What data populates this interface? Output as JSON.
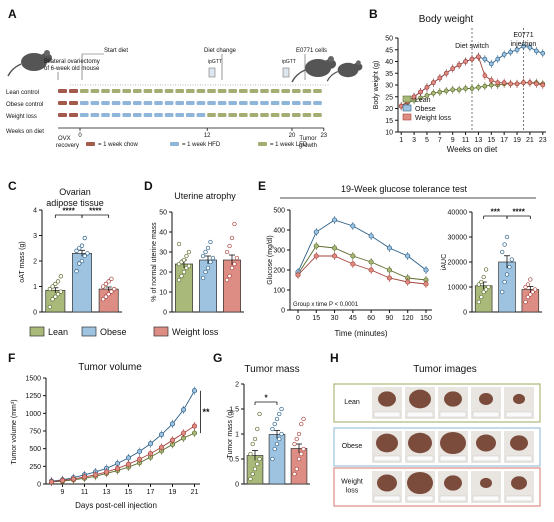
{
  "panels": {
    "A": {
      "letter": "A",
      "annot_ovx": "Bilateral ovariectomy",
      "annot_ovx2": "of 6-week old mouse",
      "annot_start": "Start diet",
      "annot_change": "Diet change",
      "annot_e0771": "E0771 cells",
      "annot_ipgtt1": "ipGTT",
      "annot_ipgtt2": "ipGTT",
      "rows": [
        "Lean control",
        "Obese control",
        "Weight loss",
        "Weeks on diet"
      ],
      "ticks": [
        "0",
        "12",
        "20",
        "23"
      ],
      "ovx": "OVX",
      "recovery": "recovery",
      "tumor": "Tumor",
      "growth": "growth",
      "legend": [
        "= 1 week chow",
        "= 1 week HFD",
        "= 1 week LFD"
      ],
      "colors": {
        "chow": "#a45a4a",
        "hfd": "#8fb6d8",
        "lfd": "#a6ad73"
      }
    },
    "B": {
      "letter": "B",
      "title": "Body weight",
      "ylabel": "Body weight (g)",
      "xlabel": "Weeks on diet",
      "diet_switch": "Diet switch",
      "e0771": "E0771",
      "injection": "injection"
    },
    "C": {
      "letter": "C",
      "title1": "Ovarian",
      "title2": "adipose tissue",
      "ylabel": "oAT mass (g)",
      "sig1": "****",
      "sig2": "****"
    },
    "D": {
      "letter": "D",
      "title": "Uterine atrophy",
      "ylabel": "% of normal uterine mass"
    },
    "E": {
      "letter": "E",
      "title": "19-Week glucose tolerance test",
      "ylabel": "Glucose (mg/dl)",
      "xlabel": "Time (minutes)",
      "stat": "Group x time P < 0.0001",
      "ylabel2": "iAUC",
      "sig1": "***",
      "sig2": "****"
    },
    "F": {
      "letter": "F",
      "title": "Tumor volume",
      "ylabel": "Tumor volume (mm³)",
      "xlabel": "Days post-cell injection",
      "sig": "**"
    },
    "G": {
      "letter": "G",
      "title": "Tumor mass",
      "ylabel": "Tumor mass (g)",
      "sig": "*"
    },
    "H": {
      "letter": "H",
      "title": "Tumor images",
      "rows": [
        "Lean",
        "Obese",
        "Weight\nloss"
      ],
      "tag": "lamp"
    }
  },
  "groups_legend": [
    "Lean",
    "Obese",
    "Weight loss"
  ],
  "colors": {
    "lean": "#a9b97a",
    "obese": "#9ec3e0",
    "wl": "#dd8d84",
    "lean_dark": "#5b6b2c",
    "obese_dark": "#2a5f88",
    "wl_dark": "#a8423b",
    "mid": "#7b4c3c"
  },
  "chart_data": [
    {
      "id": "B",
      "type": "line",
      "title": "Body weight",
      "xlabel": "Weeks on diet",
      "ylabel": "Body weight (g)",
      "x": [
        1,
        2,
        3,
        4,
        5,
        6,
        7,
        8,
        9,
        10,
        11,
        12,
        13,
        14,
        15,
        16,
        17,
        18,
        19,
        20,
        21,
        22,
        23
      ],
      "xticks": [
        1,
        3,
        5,
        7,
        9,
        11,
        13,
        15,
        17,
        19,
        21,
        23
      ],
      "ylim": [
        10,
        50
      ],
      "yticks": [
        10,
        15,
        20,
        25,
        30,
        35,
        40,
        45,
        50
      ],
      "vlines": [
        12,
        20
      ],
      "series": [
        {
          "name": "Lean",
          "values": [
            21,
            22.5,
            23.5,
            24.5,
            25.5,
            26.5,
            27,
            27.5,
            28,
            28,
            28.5,
            28.5,
            29,
            29.5,
            30,
            30,
            30.5,
            30.5,
            30.5,
            31,
            31,
            31,
            30.5
          ]
        },
        {
          "name": "Obese",
          "values": [
            21,
            23,
            25,
            27,
            29,
            31,
            33,
            35,
            37,
            38.5,
            40,
            41,
            42,
            41,
            39,
            41,
            43,
            44,
            45,
            46.5,
            46,
            44.5,
            43.5
          ]
        },
        {
          "name": "Weight loss",
          "values": [
            21,
            23,
            25,
            27,
            29,
            31,
            33,
            35,
            37,
            38.5,
            40,
            41,
            42,
            34,
            32,
            31,
            31,
            30.5,
            30.5,
            31,
            31,
            30.5,
            30
          ]
        }
      ]
    },
    {
      "id": "C",
      "type": "bar",
      "title": "Ovarian adipose tissue",
      "ylabel": "oAT mass (g)",
      "ylim": [
        0,
        4
      ],
      "yticks": [
        0,
        1,
        2,
        3,
        4
      ],
      "categories": [
        "Lean",
        "Obese",
        "Weight loss"
      ],
      "values": [
        0.85,
        2.3,
        0.9
      ],
      "errors": [
        0.1,
        0.12,
        0.08
      ],
      "points": [
        [
          0.2,
          0.5,
          0.6,
          0.7,
          0.8,
          0.9,
          1.0,
          1.1,
          1.2,
          1.4
        ],
        [
          1.6,
          1.9,
          2.0,
          2.2,
          2.3,
          2.4,
          2.5,
          2.6,
          2.9
        ],
        [
          0.5,
          0.6,
          0.7,
          0.8,
          0.9,
          1.0,
          1.1,
          1.2,
          1.3
        ]
      ]
    },
    {
      "id": "D",
      "type": "bar",
      "title": "Uterine atrophy",
      "ylabel": "% of normal uterine mass",
      "ylim": [
        0,
        50
      ],
      "yticks": [
        0,
        10,
        20,
        30,
        40,
        50
      ],
      "categories": [
        "Lean",
        "Obese",
        "Weight loss"
      ],
      "values": [
        24,
        26,
        26
      ],
      "errors": [
        2,
        2,
        2.5
      ],
      "points": [
        [
          16,
          18,
          20,
          22,
          23,
          24,
          25,
          26,
          28,
          30,
          34
        ],
        [
          17,
          20,
          22,
          25,
          27,
          28,
          30,
          32,
          35
        ],
        [
          16,
          18,
          22,
          24,
          27,
          30,
          33,
          37,
          44
        ]
      ]
    },
    {
      "id": "E1",
      "type": "line",
      "title": "19-Week glucose tolerance test",
      "xlabel": "Time (minutes)",
      "ylabel": "Glucose (mg/dl)",
      "x": [
        0,
        15,
        30,
        45,
        60,
        90,
        120,
        150
      ],
      "ylim": [
        0,
        500
      ],
      "yticks": [
        0,
        100,
        200,
        300,
        400,
        500
      ],
      "series": [
        {
          "name": "Lean",
          "values": [
            180,
            320,
            310,
            270,
            240,
            200,
            160,
            150
          ]
        },
        {
          "name": "Obese",
          "values": [
            190,
            390,
            450,
            420,
            370,
            310,
            270,
            200
          ]
        },
        {
          "name": "Weight loss",
          "values": [
            175,
            270,
            270,
            230,
            200,
            160,
            140,
            130
          ]
        }
      ]
    },
    {
      "id": "E2",
      "type": "bar",
      "ylabel": "iAUC",
      "ylim": [
        0,
        40000
      ],
      "yticks": [
        0,
        10000,
        20000,
        30000,
        40000
      ],
      "categories": [
        "Lean",
        "Obese",
        "Weight loss"
      ],
      "values": [
        10500,
        20000,
        9000
      ],
      "errors": [
        1500,
        2500,
        1200
      ],
      "points": [
        [
          4000,
          6000,
          8000,
          9000,
          10000,
          11000,
          12000,
          14000,
          17000
        ],
        [
          8000,
          12000,
          15000,
          18000,
          21000,
          24000,
          27000,
          30000
        ],
        [
          4000,
          6000,
          7000,
          8000,
          9000,
          10000,
          11000,
          13000
        ]
      ]
    },
    {
      "id": "F",
      "type": "line",
      "title": "Tumor volume",
      "xlabel": "Days post-cell injection",
      "ylabel": "Tumor volume (mm³)",
      "x": [
        8,
        9,
        10,
        11,
        12,
        13,
        14,
        15,
        16,
        17,
        18,
        19,
        20,
        21
      ],
      "xticks": [
        9,
        11,
        13,
        15,
        17,
        19,
        21
      ],
      "ylim": [
        0,
        1500
      ],
      "yticks": [
        0,
        250,
        500,
        750,
        1000,
        1250,
        1500
      ],
      "series": [
        {
          "name": "Lean",
          "values": [
            30,
            40,
            60,
            80,
            110,
            150,
            190,
            240,
            300,
            380,
            470,
            560,
            650,
            720
          ]
        },
        {
          "name": "Obese",
          "values": [
            40,
            60,
            90,
            130,
            170,
            220,
            290,
            370,
            460,
            570,
            700,
            850,
            1050,
            1320
          ]
        },
        {
          "name": "Weight loss",
          "values": [
            30,
            50,
            70,
            100,
            130,
            170,
            220,
            280,
            350,
            430,
            520,
            620,
            720,
            820
          ]
        }
      ]
    },
    {
      "id": "G",
      "type": "bar",
      "title": "Tumor mass",
      "ylabel": "Tumor mass (g)",
      "ylim": [
        0,
        2.0
      ],
      "yticks": [
        0.0,
        0.5,
        1.0,
        1.5,
        2.0
      ],
      "categories": [
        "Lean",
        "Obese",
        "Weight loss"
      ],
      "values": [
        0.57,
        0.99,
        0.71
      ],
      "errors": [
        0.1,
        0.08,
        0.09
      ],
      "points": [
        [
          0.1,
          0.2,
          0.3,
          0.4,
          0.5,
          0.6,
          0.8,
          0.9,
          1.1,
          1.4
        ],
        [
          0.5,
          0.7,
          0.8,
          0.9,
          1.0,
          1.1,
          1.2,
          1.3,
          1.4,
          1.5
        ],
        [
          0.2,
          0.3,
          0.5,
          0.6,
          0.7,
          0.8,
          0.9,
          1.0,
          1.2,
          1.3
        ]
      ]
    }
  ]
}
